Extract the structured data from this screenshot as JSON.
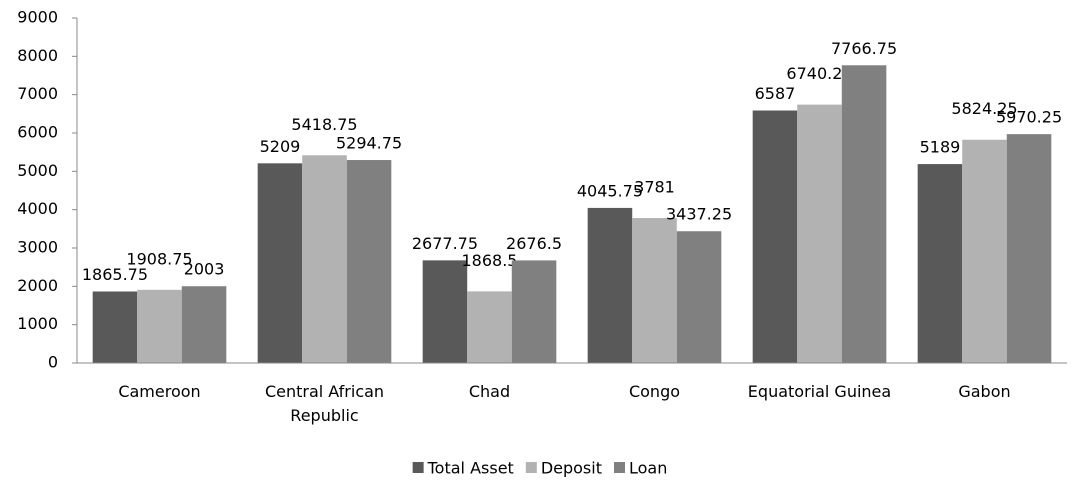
{
  "chart_data": {
    "type": "bar",
    "categories": [
      "Cameroon",
      "Central African Republic",
      "Chad",
      "Congo",
      "Equatorial Guinea",
      "Gabon"
    ],
    "series": [
      {
        "name": "Total Asset",
        "color": "#595959",
        "values": [
          1865.75,
          5209,
          2677.75,
          4045.75,
          6587,
          5189
        ]
      },
      {
        "name": "Deposit",
        "color": "#b2b2b2",
        "values": [
          1908.75,
          5418.75,
          1868.5,
          3781,
          6740.25,
          5824.25
        ]
      },
      {
        "name": "Loan",
        "color": "#808080",
        "values": [
          2003,
          5294.75,
          2676.5,
          3437.25,
          7766.75,
          5970.25
        ]
      }
    ],
    "ylim": [
      0,
      9000
    ],
    "yticks": [
      0,
      1000,
      2000,
      3000,
      4000,
      5000,
      6000,
      7000,
      8000,
      9000
    ],
    "grid": false,
    "legend": "bottom"
  }
}
